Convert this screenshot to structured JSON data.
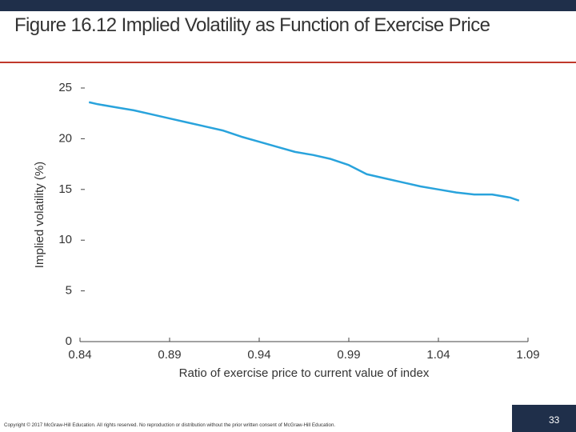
{
  "chart_data": {
    "type": "line",
    "title": "Figure 16.12 Implied Volatility as Function of Exercise Price",
    "xlabel": "Ratio of exercise price to current value of index",
    "ylabel": "Implied volatility (%)",
    "x": [
      0.845,
      0.85,
      0.86,
      0.87,
      0.88,
      0.89,
      0.9,
      0.91,
      0.92,
      0.93,
      0.94,
      0.95,
      0.96,
      0.97,
      0.98,
      0.99,
      1.0,
      1.01,
      1.02,
      1.03,
      1.04,
      1.05,
      1.06,
      1.07,
      1.08,
      1.085
    ],
    "values": [
      23.6,
      23.4,
      23.1,
      22.8,
      22.4,
      22.0,
      21.6,
      21.2,
      20.8,
      20.2,
      19.7,
      19.2,
      18.7,
      18.4,
      18.0,
      17.4,
      16.5,
      16.1,
      15.7,
      15.3,
      15.0,
      14.7,
      14.5,
      14.5,
      14.2,
      13.9
    ],
    "color": "#29a3dc",
    "xlim": [
      0.84,
      1.09
    ],
    "ylim": [
      0,
      25
    ],
    "xticks": [
      0.84,
      0.89,
      0.94,
      0.99,
      1.04,
      1.09
    ],
    "yticks": [
      0,
      5,
      10,
      15,
      20,
      25
    ]
  },
  "footer": {
    "copyright": "Copyright © 2017 McGraw-Hill Education. All rights reserved. No reproduction or distribution without the prior written consent of McGraw-Hill Education.",
    "page_number": 33
  }
}
